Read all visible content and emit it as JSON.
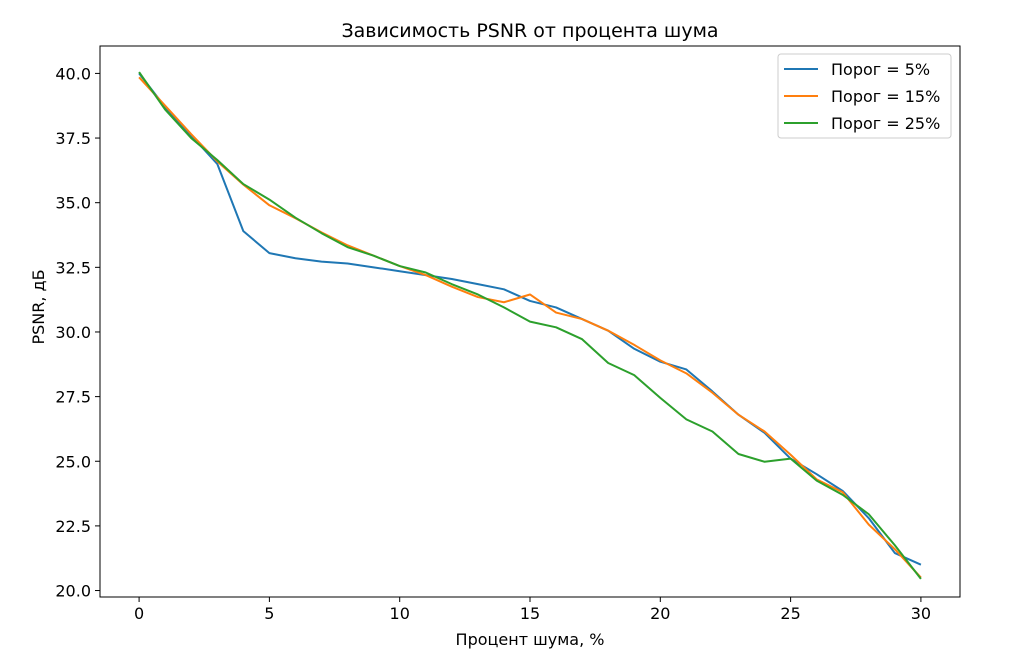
{
  "chart_data": {
    "type": "line",
    "title": "Зависимость PSNR от процента шума",
    "xlabel": "Процент шума, %",
    "ylabel": "PSNR, дБ",
    "xlim": [
      -1.5,
      31.5
    ],
    "ylim": [
      19.75,
      41.06
    ],
    "xticks": [
      0,
      5,
      10,
      15,
      20,
      25,
      30
    ],
    "yticks": [
      20.0,
      22.5,
      25.0,
      27.5,
      30.0,
      32.5,
      35.0,
      37.5,
      40.0
    ],
    "xtick_labels": [
      "0",
      "5",
      "10",
      "15",
      "20",
      "25",
      "30"
    ],
    "ytick_labels": [
      "20.0",
      "22.5",
      "25.0",
      "27.5",
      "30.0",
      "32.5",
      "35.0",
      "37.5",
      "40.0"
    ],
    "grid": false,
    "legend_position": "top-right",
    "x": [
      0,
      1,
      2,
      3,
      4,
      5,
      6,
      7,
      8,
      9,
      10,
      11,
      12,
      13,
      14,
      15,
      16,
      17,
      18,
      19,
      20,
      21,
      22,
      23,
      24,
      25,
      26,
      27,
      28,
      29,
      30
    ],
    "series": [
      {
        "name": "Порог = 5%",
        "color": "#1f77b4",
        "values": [
          40.0,
          38.7,
          37.6,
          36.5,
          33.9,
          33.05,
          32.85,
          32.72,
          32.65,
          32.5,
          32.35,
          32.2,
          32.05,
          31.85,
          31.65,
          31.2,
          30.95,
          30.5,
          30.05,
          29.35,
          28.85,
          28.55,
          27.7,
          26.8,
          26.1,
          25.1,
          24.5,
          23.85,
          22.8,
          21.45,
          21.0
        ]
      },
      {
        "name": "Порог = 15%",
        "color": "#ff7f0e",
        "values": [
          39.85,
          38.75,
          37.65,
          36.6,
          35.7,
          34.9,
          34.4,
          33.85,
          33.35,
          32.95,
          32.55,
          32.2,
          31.75,
          31.35,
          31.15,
          31.45,
          30.75,
          30.5,
          30.05,
          29.5,
          28.9,
          28.4,
          27.65,
          26.8,
          26.15,
          25.25,
          24.3,
          23.8,
          22.55,
          21.6,
          20.5
        ]
      },
      {
        "name": "Порог = 25%",
        "color": "#2ca02c",
        "values": [
          40.05,
          38.6,
          37.5,
          36.65,
          35.72,
          35.12,
          34.42,
          33.82,
          33.28,
          32.95,
          32.55,
          32.3,
          31.85,
          31.45,
          30.95,
          30.4,
          30.18,
          29.72,
          28.8,
          28.33,
          27.45,
          26.62,
          26.15,
          25.28,
          24.98,
          25.1,
          24.25,
          23.7,
          22.95,
          21.75,
          20.45
        ]
      }
    ]
  }
}
